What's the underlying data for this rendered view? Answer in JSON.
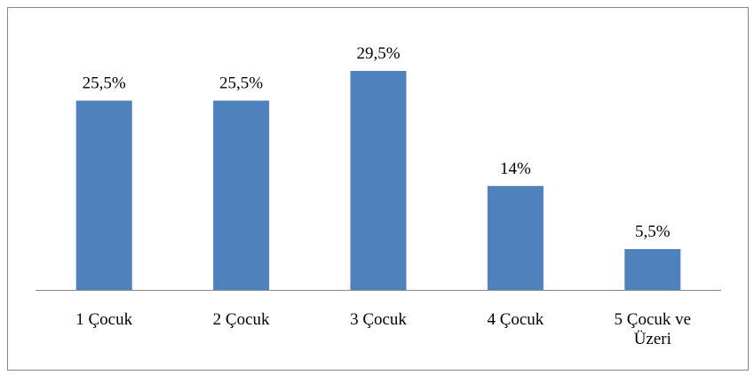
{
  "chart_data": {
    "type": "bar",
    "categories": [
      "1 Çocuk",
      "2 Çocuk",
      "3 Çocuk",
      "4 Çocuk",
      "5 Çocuk ve Üzeri"
    ],
    "values": [
      25.5,
      25.5,
      29.5,
      14,
      5.5
    ],
    "value_labels": [
      "25,5%",
      "25,5%",
      "29,5%",
      "14%",
      "5,5%"
    ],
    "color": "#4f81bd"
  }
}
